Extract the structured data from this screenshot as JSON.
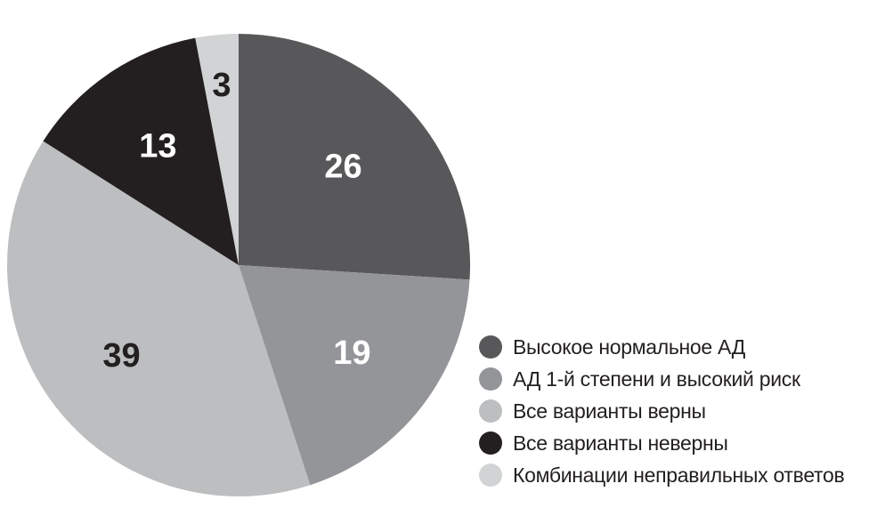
{
  "chart_data": {
    "type": "pie",
    "categories": [
      "Высокое нормальное АД",
      "АД 1-й степени и высокий риск",
      "Все варианты верны",
      "Все варианты неверны",
      "Комбинации неправильных ответов"
    ],
    "values": [
      26,
      19,
      39,
      13,
      3
    ],
    "labels": [
      "26",
      "19",
      "39",
      "13",
      "3"
    ],
    "colors": [
      "#58585a",
      "#939598",
      "#bcbec0",
      "#231f20",
      "#d1d3d4"
    ],
    "label_colors": [
      "#ffffff",
      "#ffffff",
      "#231f20",
      "#ffffff",
      "#231f20"
    ],
    "start": "12 o'clock",
    "direction": "clockwise",
    "legend_position": "bottom-right",
    "title": ""
  }
}
